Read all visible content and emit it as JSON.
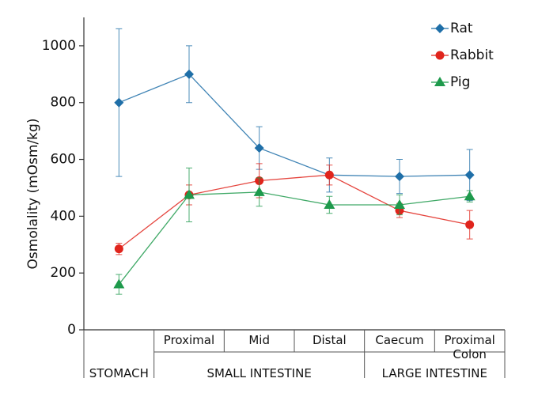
{
  "chart_data": {
    "type": "line",
    "y_label": "Osmolality  (mOsm/kg)",
    "categories": [
      null,
      "Proximal",
      "Mid",
      "Distal",
      "Caecum",
      "Proximal Colon"
    ],
    "groups": [
      "STOMACH",
      "SMALL INTESTINE",
      "LARGE INTESTINE"
    ],
    "ylim": [
      0,
      1100
    ],
    "yticks": [
      0,
      200,
      400,
      600,
      800,
      1000
    ],
    "legend": "top-right",
    "series": [
      {
        "name": "Rat",
        "color": "#1f6fa8",
        "marker": "diamond",
        "values": [
          800,
          900,
          640,
          545,
          540,
          545
        ],
        "errors": [
          260,
          100,
          75,
          60,
          60,
          90
        ]
      },
      {
        "name": "Rabbit",
        "color": "#e0241c",
        "marker": "circle",
        "values": [
          285,
          475,
          525,
          545,
          420,
          370
        ],
        "errors": [
          20,
          35,
          60,
          35,
          25,
          50
        ]
      },
      {
        "name": "Pig",
        "color": "#1e9a4c",
        "marker": "triangle",
        "values": [
          160,
          475,
          485,
          440,
          440,
          470
        ],
        "errors": [
          35,
          95,
          50,
          30,
          35,
          20
        ]
      }
    ]
  }
}
